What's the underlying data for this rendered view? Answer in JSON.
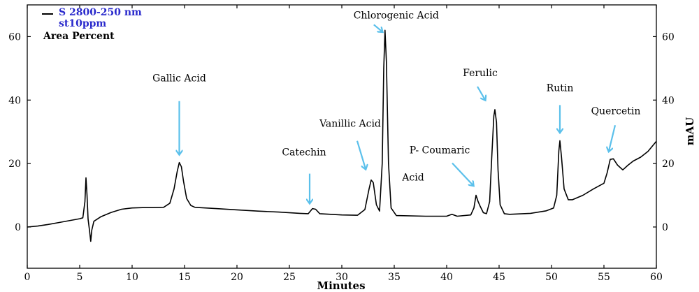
{
  "chart_data": {
    "type": "line",
    "title": "",
    "xlabel": "Minutes",
    "ylabel_left": "",
    "ylabel_right": "mAU",
    "xlim": [
      0,
      60
    ],
    "ylim": [
      -13,
      70
    ],
    "x_ticks": [
      0,
      5,
      10,
      15,
      20,
      25,
      30,
      35,
      40,
      45,
      50,
      55,
      60
    ],
    "y_ticks": [
      0,
      20,
      40,
      60
    ],
    "grid": false,
    "legend": {
      "position": "top-left",
      "series_label": "S 2800-250 nm",
      "series_label_2": "st10ppm",
      "note": "Area Percent"
    },
    "series": [
      {
        "line_color": "#000000",
        "points": [
          [
            0,
            0
          ],
          [
            1,
            0.3
          ],
          [
            2,
            0.8
          ],
          [
            3,
            1.4
          ],
          [
            4,
            2.0
          ],
          [
            5,
            2.6
          ],
          [
            5.3,
            2.9
          ],
          [
            5.5,
            8.0
          ],
          [
            5.6,
            15.5
          ],
          [
            5.7,
            10.0
          ],
          [
            5.8,
            2.5
          ],
          [
            5.95,
            -1.5
          ],
          [
            6.05,
            -4.5
          ],
          [
            6.15,
            -1.0
          ],
          [
            6.35,
            1.8
          ],
          [
            7,
            3.2
          ],
          [
            8,
            4.6
          ],
          [
            9,
            5.6
          ],
          [
            10,
            6.0
          ],
          [
            11,
            6.1
          ],
          [
            12,
            6.1
          ],
          [
            13,
            6.2
          ],
          [
            13.6,
            7.5
          ],
          [
            14.0,
            12.0
          ],
          [
            14.3,
            17.5
          ],
          [
            14.5,
            20.3
          ],
          [
            14.7,
            19.0
          ],
          [
            14.9,
            14.5
          ],
          [
            15.2,
            9.0
          ],
          [
            15.6,
            6.8
          ],
          [
            16,
            6.2
          ],
          [
            18,
            5.8
          ],
          [
            20,
            5.4
          ],
          [
            22,
            5.0
          ],
          [
            24,
            4.7
          ],
          [
            26,
            4.3
          ],
          [
            26.8,
            4.2
          ],
          [
            27.2,
            5.8
          ],
          [
            27.5,
            5.6
          ],
          [
            27.9,
            4.2
          ],
          [
            30,
            3.8
          ],
          [
            31.5,
            3.7
          ],
          [
            32.2,
            5.5
          ],
          [
            32.6,
            12.0
          ],
          [
            32.8,
            14.8
          ],
          [
            33.0,
            14.0
          ],
          [
            33.3,
            7.0
          ],
          [
            33.6,
            5.0
          ],
          [
            33.85,
            20.0
          ],
          [
            34.0,
            50.0
          ],
          [
            34.12,
            62.0
          ],
          [
            34.25,
            52.0
          ],
          [
            34.45,
            20.0
          ],
          [
            34.7,
            6.0
          ],
          [
            35.2,
            3.6
          ],
          [
            38,
            3.4
          ],
          [
            40,
            3.4
          ],
          [
            40.5,
            4.0
          ],
          [
            41,
            3.4
          ],
          [
            42.3,
            3.8
          ],
          [
            42.6,
            6.0
          ],
          [
            42.8,
            10.0
          ],
          [
            43.0,
            8.0
          ],
          [
            43.2,
            6.5
          ],
          [
            43.5,
            4.5
          ],
          [
            43.8,
            4.2
          ],
          [
            44.1,
            8.0
          ],
          [
            44.3,
            22.0
          ],
          [
            44.5,
            35.0
          ],
          [
            44.6,
            37.0
          ],
          [
            44.75,
            33.0
          ],
          [
            44.9,
            18.0
          ],
          [
            45.1,
            7.0
          ],
          [
            45.5,
            4.2
          ],
          [
            46,
            4.0
          ],
          [
            48,
            4.3
          ],
          [
            49.5,
            5.1
          ],
          [
            50.2,
            6.0
          ],
          [
            50.5,
            10.0
          ],
          [
            50.7,
            24.0
          ],
          [
            50.8,
            27.2
          ],
          [
            50.95,
            22.0
          ],
          [
            51.2,
            12.0
          ],
          [
            51.6,
            8.6
          ],
          [
            52,
            8.6
          ],
          [
            53,
            10.0
          ],
          [
            54,
            12.0
          ],
          [
            55,
            13.8
          ],
          [
            55.3,
            17.0
          ],
          [
            55.6,
            21.3
          ],
          [
            55.9,
            21.5
          ],
          [
            56.3,
            19.5
          ],
          [
            56.8,
            18.0
          ],
          [
            57.3,
            19.5
          ],
          [
            57.8,
            20.8
          ],
          [
            58.5,
            22.0
          ],
          [
            59.2,
            23.8
          ],
          [
            60,
            27.0
          ]
        ]
      }
    ],
    "annotations": [
      {
        "label": "Gallic Acid",
        "x": 14.5,
        "y": 20.3
      },
      {
        "label": "Catechin",
        "x": 27.2,
        "y": 5.8
      },
      {
        "label": "Vanillic Acid",
        "x": 32.8,
        "y": 14.8
      },
      {
        "label": "Chlorogenic Acid",
        "x": 34.12,
        "y": 62.0
      },
      {
        "label": "P- Coumaric",
        "x": 42.8,
        "y": 10.0
      },
      {
        "label": "Acid",
        "x": 42.8,
        "y": 10.0
      },
      {
        "label": "Ferulic",
        "x": 44.6,
        "y": 37.0
      },
      {
        "label": "Rutin",
        "x": 50.8,
        "y": 27.2
      },
      {
        "label": "Quercetin",
        "x": 55.8,
        "y": 21.5
      }
    ],
    "colors": {
      "trace": "#000000",
      "arrow": "#5bc0eb",
      "legend_series_text": "#2a2acc"
    }
  }
}
